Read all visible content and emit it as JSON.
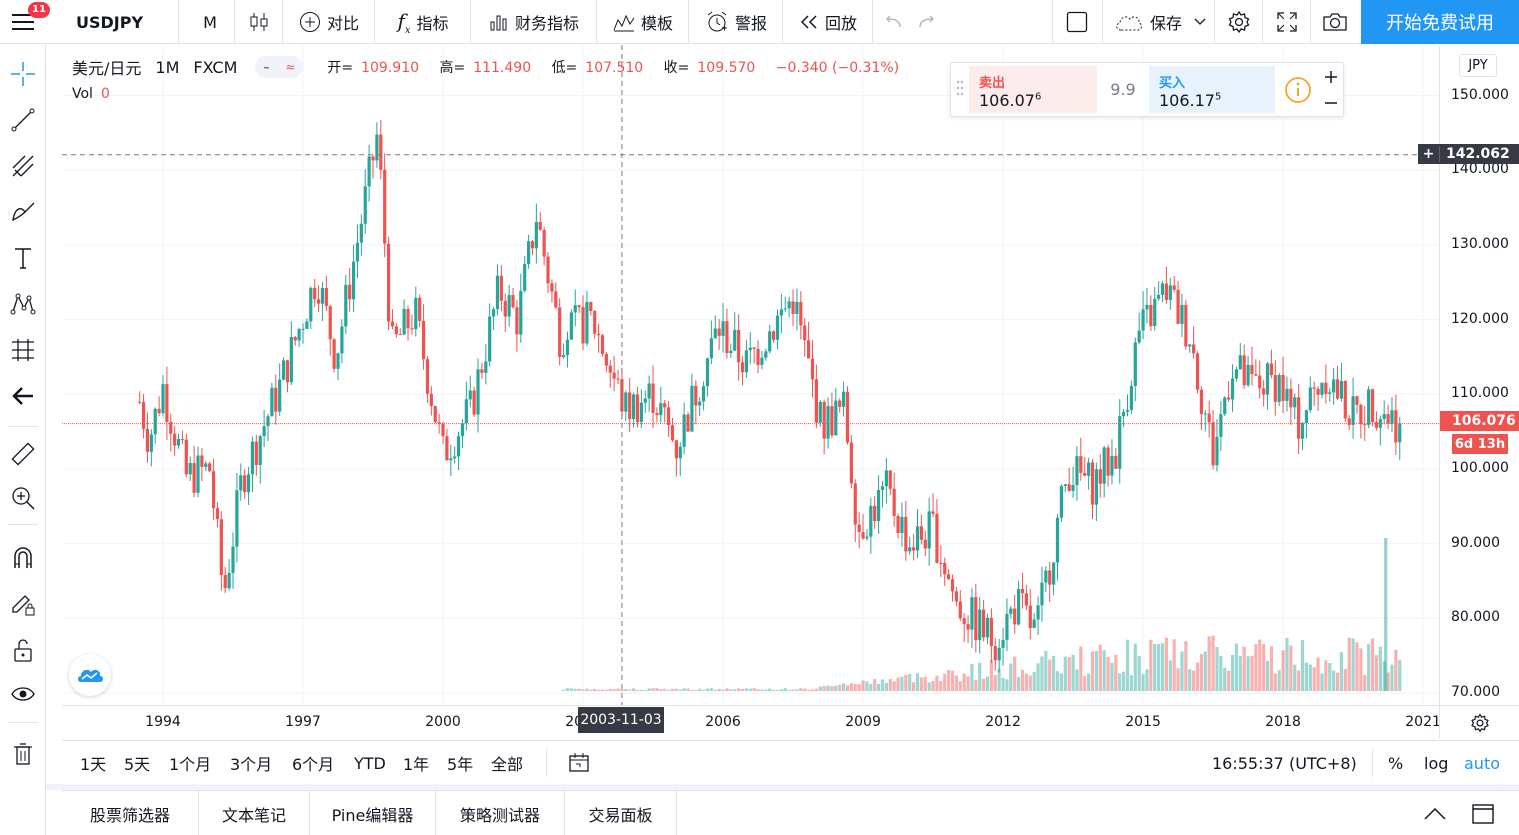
{
  "topbar": {
    "notification_count": "11",
    "symbol": "USDJPY",
    "interval": "M",
    "compare_label": "对比",
    "indicators_label": "指标",
    "financials_label": "财务指标",
    "templates_label": "模板",
    "alert_label": "警报",
    "replay_label": "回放",
    "save_label": "保存",
    "trial_label": "开始免费试用"
  },
  "legend": {
    "title": "美元/日元",
    "interval": "1M",
    "exchange": "FXCM",
    "open_label": "开=",
    "open": "109.910",
    "high_label": "高=",
    "high": "111.490",
    "low_label": "低=",
    "low": "107.510",
    "close_label": "收=",
    "close": "109.570",
    "change": "−0.340 (−0.31%)",
    "vol_label": "Vol",
    "vol_value": "0"
  },
  "trade": {
    "sell_label": "卖出",
    "sell_main": "106.07",
    "sell_sup": "6",
    "spread": "9.9",
    "buy_label": "买入",
    "buy_main": "106.17",
    "buy_sup": "5"
  },
  "price_axis": {
    "currency": "JPY",
    "ticks": [
      "150.000",
      "140.000",
      "130.000",
      "120.000",
      "110.000",
      "100.000",
      "90.000",
      "80.000",
      "70.000"
    ],
    "crosshair_price": "142.062",
    "last_price": "106.076",
    "countdown": "6d 13h"
  },
  "time_axis": {
    "ticks": [
      "1994",
      "1997",
      "2000",
      "2003",
      "2006",
      "2009",
      "2012",
      "2015",
      "2018",
      "2021"
    ],
    "crosshair_date": "2003-11-03"
  },
  "range_bar": {
    "ranges": [
      "1天",
      "5天",
      "1个月",
      "3个月",
      "6个月",
      "YTD",
      "1年",
      "5年",
      "全部"
    ],
    "clock": "16:55:37 (UTC+8)",
    "percent_label": "%",
    "log_label": "log",
    "auto_label": "auto"
  },
  "bottom_panel": {
    "tabs": [
      "股票筛选器",
      "文本笔记",
      "Pine编辑器",
      "策略测试器",
      "交易面板"
    ]
  },
  "colors": {
    "up": "#26a69a",
    "down": "#ef5350",
    "accent": "#2196f3",
    "axis_label_bg": "#363a45"
  },
  "chart_data": {
    "type": "candlestick",
    "symbol": "USDJPY",
    "interval": "1M",
    "price_range": [
      68,
      152
    ],
    "keypoints": [
      {
        "date": "1993.5",
        "price": 109
      },
      {
        "date": "1993.7",
        "price": 104
      },
      {
        "date": "1994.0",
        "price": 111
      },
      {
        "date": "1994.5",
        "price": 99
      },
      {
        "date": "1995.0",
        "price": 100
      },
      {
        "date": "1995.3",
        "price": 83
      },
      {
        "date": "1995.7",
        "price": 99
      },
      {
        "date": "1996.5",
        "price": 111
      },
      {
        "date": "1997.3",
        "price": 126
      },
      {
        "date": "1997.7",
        "price": 115
      },
      {
        "date": "1998.3",
        "price": 135
      },
      {
        "date": "1998.6",
        "price": 145
      },
      {
        "date": "1998.9",
        "price": 116
      },
      {
        "date": "1999.4",
        "price": 121
      },
      {
        "date": "2000.0",
        "price": 102
      },
      {
        "date": "2000.6",
        "price": 108
      },
      {
        "date": "2001.2",
        "price": 124
      },
      {
        "date": "2001.6",
        "price": 120
      },
      {
        "date": "2002.0",
        "price": 134
      },
      {
        "date": "2002.5",
        "price": 118
      },
      {
        "date": "2003.2",
        "price": 120
      },
      {
        "date": "2003.9",
        "price": 108
      },
      {
        "date": "2004.5",
        "price": 110
      },
      {
        "date": "2005.0",
        "price": 103
      },
      {
        "date": "2005.9",
        "price": 119
      },
      {
        "date": "2006.5",
        "price": 114
      },
      {
        "date": "2007.5",
        "price": 123
      },
      {
        "date": "2008.1",
        "price": 106
      },
      {
        "date": "2008.6",
        "price": 108
      },
      {
        "date": "2008.9",
        "price": 92
      },
      {
        "date": "2009.5",
        "price": 97
      },
      {
        "date": "2010.0",
        "price": 90
      },
      {
        "date": "2010.5",
        "price": 92
      },
      {
        "date": "2011.0",
        "price": 82
      },
      {
        "date": "2011.8",
        "price": 77
      },
      {
        "date": "2012.3",
        "price": 82
      },
      {
        "date": "2012.7",
        "price": 78
      },
      {
        "date": "2013.4",
        "price": 100
      },
      {
        "date": "2013.9",
        "price": 98
      },
      {
        "date": "2014.4",
        "price": 102
      },
      {
        "date": "2014.9",
        "price": 118
      },
      {
        "date": "2015.5",
        "price": 124
      },
      {
        "date": "2016.0",
        "price": 118
      },
      {
        "date": "2016.5",
        "price": 102
      },
      {
        "date": "2016.9",
        "price": 114
      },
      {
        "date": "2017.3",
        "price": 111
      },
      {
        "date": "2017.9",
        "price": 112
      },
      {
        "date": "2018.3",
        "price": 106
      },
      {
        "date": "2018.9",
        "price": 113
      },
      {
        "date": "2019.5",
        "price": 107
      },
      {
        "date": "2019.9",
        "price": 109
      },
      {
        "date": "2020.3",
        "price": 107
      },
      {
        "date": "2020.5",
        "price": 106.08
      }
    ]
  }
}
